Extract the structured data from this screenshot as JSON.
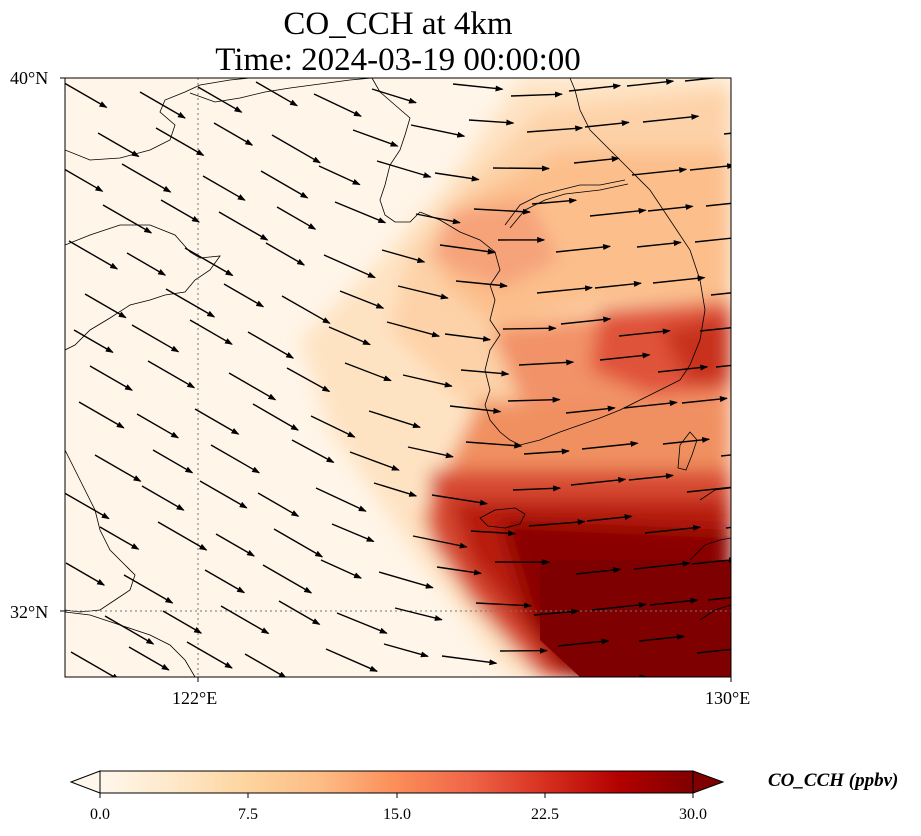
{
  "title": {
    "line1": "CO_CCH at 4km",
    "line2": "Time: 2024-03-19 00:00:00"
  },
  "map": {
    "lat_labels": [
      "40°N",
      "32°N"
    ],
    "lon_labels": [
      "122°E",
      "130°E"
    ],
    "extent": {
      "lon": [
        120,
        130
      ],
      "lat": [
        31,
        40
      ]
    },
    "gridlines": {
      "lon": [
        122
      ],
      "lat": [
        32
      ],
      "style": "dotted"
    }
  },
  "colorbar": {
    "label": "CO_CCH (ppbv)",
    "ticks": [
      "0.0",
      "7.5",
      "15.0",
      "22.5",
      "30.0"
    ],
    "range": [
      0,
      30
    ],
    "extend": "both",
    "colormap": "OrRd",
    "colors": [
      "#fff7ec",
      "#fee8c8",
      "#fdd49e",
      "#fdbb84",
      "#fc8d59",
      "#ef6548",
      "#d7301f",
      "#b30000",
      "#7f0000"
    ]
  }
}
